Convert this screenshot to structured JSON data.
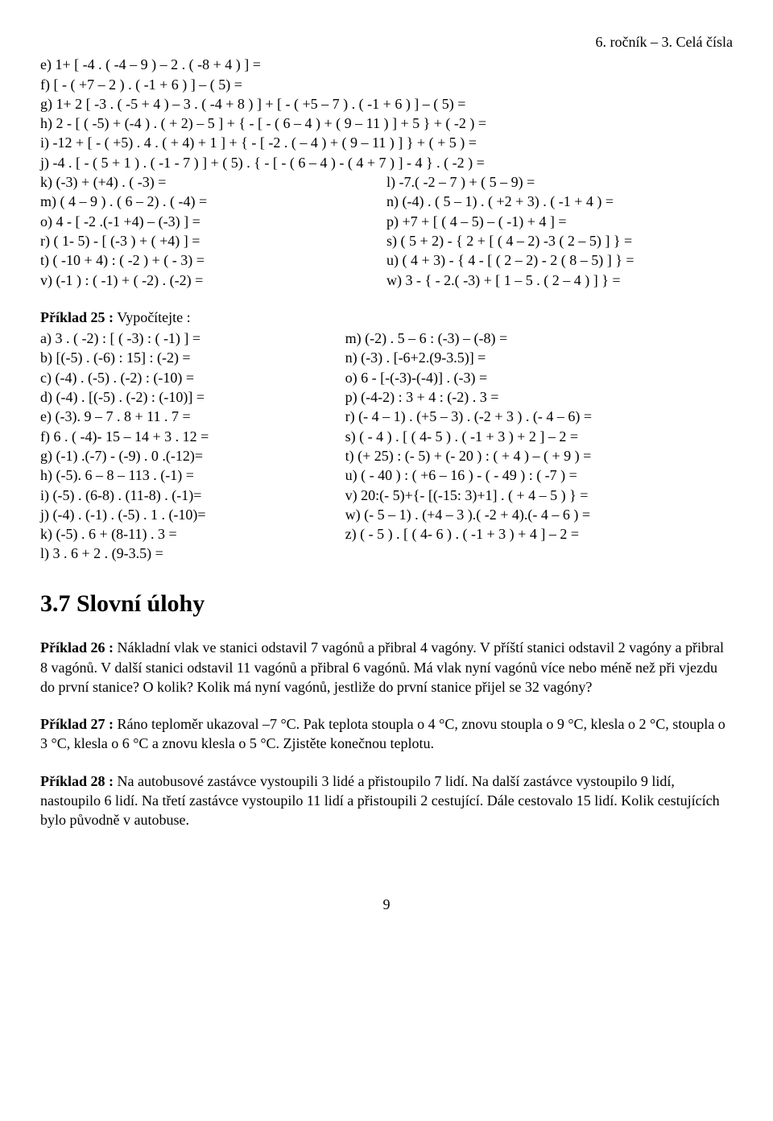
{
  "header": "6. ročník – 3. Celá čísla",
  "block1": {
    "e": "e) 1+ [ -4 . ( -4 – 9 ) – 2 . ( -8 + 4 ) ] =",
    "f": "f) [ - ( +7 – 2 ) . ( -1 + 6 ) ] – ( 5) =",
    "g": "g) 1+ 2 [ -3 . ( -5 + 4 ) – 3 . ( -4 + 8 ) ] + [ - ( +5 – 7 ) . ( -1 + 6 ) ] – ( 5) =",
    "h": "h) 2 - [ ( -5) + (-4 ) . ( + 2) – 5 ] + { - [ - ( 6 – 4 ) + ( 9 – 11 ) ] + 5 } + ( -2 ) =",
    "i": "i) -12 + [ - ( +5) . 4 . ( + 4) + 1 ] + { - [ -2 . ( – 4 ) + ( 9 – 11 ) ] } + ( + 5 ) =",
    "j": "j) -4 . [ - ( 5 + 1 ) . ( -1 - 7 ) ] + ( 5) . { - [ - ( 6 – 4 ) - ( 4 + 7 ) ] - 4 } . ( -2 ) =",
    "k": "k) (-3) + (+4) . ( -3) =",
    "l": "l) -7.( -2 – 7 ) + ( 5 – 9) =",
    "m": "m) ( 4 – 9 ) . ( 6 – 2) . ( -4) =",
    "n": "n) (-4) . ( 5 – 1) . ( +2 + 3) . ( -1 + 4 ) =",
    "o": "o) 4 - [ -2 .(-1 +4) – (-3) ] =",
    "p": "p) +7 + [ ( 4 – 5) – ( -1) + 4 ] =",
    "r": "r) ( 1- 5) - [ (-3 ) + ( +4) ] =",
    "s": "s) ( 5 + 2) - { 2 + [ ( 4 – 2) -3 ( 2 – 5) ] } =",
    "t": "t) ( -10 + 4) : ( -2 ) + ( - 3) =",
    "u": "u) ( 4 + 3) - { 4 - [ ( 2 – 2) - 2 ( 8 – 5) ] } =",
    "v": "v) (-1 ) : ( -1) + ( -2) . (-2) =",
    "w": "w) 3 - { - 2.( -3) + [ 1 – 5 . ( 2 – 4 ) ] } ="
  },
  "p25": {
    "title_strong": "Příklad 25 :",
    "title_rest": " Vypočítejte :",
    "left": {
      "a": "a) 3 . ( -2) : [ ( -3) : ( -1) ] =",
      "b": "b) [(-5) . (-6) : 15] : (-2) =",
      "c": "c) (-4) . (-5) . (-2) : (-10) =",
      "d": "d) (-4) . [(-5) . (-2) : (-10)] =",
      "e": "e) (-3). 9 – 7 . 8 + 11 . 7 =",
      "f": "f) 6 . ( -4)- 15 – 14 + 3 . 12 =",
      "g": "g) (-1) .(-7) - (-9) . 0 .(-12)=",
      "h": "h) (-5). 6 – 8 – 113 . (-1) =",
      "i": "i) (-5) . (6-8) . (11-8) . (-1)=",
      "j": "j) (-4) . (-1) . (-5) . 1 . (-10)=",
      "k": "k) (-5) . 6 + (8-11) . 3 =",
      "l": "l) 3 . 6 + 2 . (9-3.5) ="
    },
    "right": {
      "m": "m) (-2) . 5 – 6 : (-3) – (-8) =",
      "n": "n) (-3) . [-6+2.(9-3.5)] =",
      "o": "o) 6 - [-(-3)-(-4)] . (-3) =",
      "p": "p) (-4-2) : 3 + 4 : (-2) . 3 =",
      "r": "r) (- 4 – 1) . (+5 – 3) . (-2 + 3 ) . (- 4 – 6) =",
      "s": "s) ( - 4 ) . [ ( 4- 5 ) . ( -1 + 3 ) + 2 ] – 2 =",
      "t": "t) (+ 25) : (- 5) + (- 20 ) : ( + 4 ) – ( + 9 ) =",
      "u": "u) ( - 40 ) : ( +6 – 16 ) - ( - 49 ) : ( -7 ) =",
      "v": "v) 20:(- 5)+{- [(-15: 3)+1] . ( + 4 – 5 ) } =",
      "w": "w) (- 5 – 1) . (+4 – 3 ).( -2 + 4).(- 4 – 6 ) =",
      "z": "z) ( - 5 ) . [ ( 4- 6 ) . ( -1 + 3 ) + 4 ] – 2 ="
    }
  },
  "section_heading": "3.7 Slovní úlohy",
  "p26": {
    "strong": "Příklad 26 :",
    "rest": "  Nákladní vlak ve stanici odstavil 7 vagónů a přibral 4 vagóny. V příští stanici odstavil 2 vagóny a přibral 8 vagónů. V další stanici odstavil 11 vagónů a přibral 6 vagónů. Má vlak nyní vagónů více nebo méně než při vjezdu do první stanice? O kolik? Kolik má nyní vagónů, jestliže do první stanice přijel se 32 vagóny?"
  },
  "p27": {
    "strong": "Příklad 27 :",
    "rest": " Ráno teploměr ukazoval –7 °C. Pak teplota stoupla o 4 °C, znovu stoupla o 9 °C, klesla o 2 °C, stoupla o 3 °C, klesla o 6 °C a znovu klesla o 5 °C. Zjistěte konečnou teplotu."
  },
  "p28": {
    "strong": "Příklad 28 :",
    "rest": " Na autobusové zastávce vystoupili 3 lidé a přistoupilo 7 lidí. Na další zastávce vystoupilo 9 lidí, nastoupilo 6 lidí. Na třetí zastávce vystoupilo 11 lidí a přistoupili 2 cestující. Dále cestovalo 15 lidí. Kolik cestujících bylo původně v autobuse."
  },
  "pagenum": "9"
}
